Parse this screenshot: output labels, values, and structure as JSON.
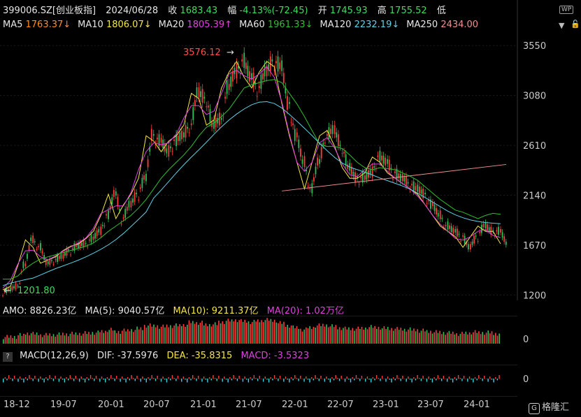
{
  "header": {
    "code": "399006.SZ[创业板指]",
    "date": "2024/06/28",
    "close_label": "收",
    "close": "1683.43",
    "amp_label": "幅",
    "change": "-4.13%(-72.45)",
    "open_label": "开",
    "open": "1745.93",
    "high_label": "高",
    "high": "1755.52",
    "low_label": "低"
  },
  "ma_line": [
    {
      "label": "MA5",
      "value": "1763.37↓",
      "color": "#ff8c1a"
    },
    {
      "label": "MA10",
      "value": "1806.07↓",
      "color": "#f5e642"
    },
    {
      "label": "MA20",
      "value": "1805.39↑",
      "color": "#e040e0"
    },
    {
      "label": "MA60",
      "value": "1961.33↓",
      "color": "#2fbf2f"
    },
    {
      "label": "MA120",
      "value": "2232.19↓",
      "color": "#5fd0e6"
    },
    {
      "label": "MA250",
      "value": "2434.00",
      "color": "#f08f8f"
    }
  ],
  "annotations": {
    "peak": "3576.12",
    "trough": "1201.80"
  },
  "price_axis": [
    "3550",
    "3080",
    "2610",
    "2140",
    "1670",
    "1200"
  ],
  "amo": {
    "label": "AMO: 8826.23亿",
    "ma5": "MA(5): 9040.57亿",
    "ma10": "MA(10): 9211.37亿",
    "ma20": "MA(20): 1.02万亿",
    "axis": "0"
  },
  "macd": {
    "q": "?",
    "label": "MACD(12,26,9)",
    "dif": "DIF: -37.5976",
    "dea": "DEA: -35.8315",
    "macd": "MACD: -3.5323",
    "axis": "0"
  },
  "x_ticks": [
    "18-12",
    "19-07",
    "20-01",
    "20-07",
    "21-01",
    "21-07",
    "22-01",
    "22-07",
    "23-01",
    "23-07",
    "24-01"
  ],
  "brand": "格隆汇",
  "chart_data": {
    "type": "line",
    "x": [
      "2018-12",
      "2019-01",
      "2019-02",
      "2019-03",
      "2019-04",
      "2019-05",
      "2019-06",
      "2019-07",
      "2019-08",
      "2019-09",
      "2019-10",
      "2019-11",
      "2019-12",
      "2020-01",
      "2020-02",
      "2020-03",
      "2020-04",
      "2020-05",
      "2020-06",
      "2020-07",
      "2020-08",
      "2020-09",
      "2020-10",
      "2020-11",
      "2020-12",
      "2021-01",
      "2021-02",
      "2021-03",
      "2021-04",
      "2021-05",
      "2021-06",
      "2021-07",
      "2021-08",
      "2021-09",
      "2021-10",
      "2021-11",
      "2021-12",
      "2022-01",
      "2022-02",
      "2022-03",
      "2022-04",
      "2022-05",
      "2022-06",
      "2022-07",
      "2022-08",
      "2022-09",
      "2022-10",
      "2022-11",
      "2022-12",
      "2023-01",
      "2023-02",
      "2023-03",
      "2023-04",
      "2023-05",
      "2023-06",
      "2023-07",
      "2023-08",
      "2023-09",
      "2023-10",
      "2023-11",
      "2023-12",
      "2024-01",
      "2024-02",
      "2024-03",
      "2024-04",
      "2024-05",
      "2024-06"
    ],
    "series": [
      {
        "name": "收",
        "values": [
          1250,
          1280,
          1480,
          1720,
          1650,
          1500,
          1530,
          1560,
          1620,
          1660,
          1680,
          1730,
          1800,
          1950,
          2150,
          1920,
          2050,
          2150,
          2300,
          2700,
          2650,
          2550,
          2650,
          2700,
          2800,
          3100,
          3050,
          2800,
          2850,
          3150,
          3300,
          3400,
          3250,
          3150,
          3300,
          3400,
          3350,
          3000,
          2700,
          2450,
          2200,
          2450,
          2700,
          2750,
          2600,
          2400,
          2300,
          2300,
          2350,
          2500,
          2450,
          2350,
          2300,
          2250,
          2200,
          2150,
          2050,
          1950,
          1850,
          1800,
          1750,
          1650,
          1750,
          1850,
          1800,
          1800,
          1683
        ]
      },
      {
        "name": "MA60",
        "values": [
          1350,
          1350,
          1380,
          1450,
          1500,
          1540,
          1560,
          1580,
          1600,
          1620,
          1640,
          1660,
          1690,
          1740,
          1800,
          1850,
          1900,
          1950,
          2020,
          2100,
          2200,
          2300,
          2380,
          2450,
          2520,
          2600,
          2700,
          2780,
          2820,
          2880,
          2950,
          3050,
          3150,
          3180,
          3200,
          3220,
          3230,
          3200,
          3100,
          3000,
          2880,
          2750,
          2620,
          2600,
          2600,
          2580,
          2520,
          2450,
          2400,
          2380,
          2400,
          2390,
          2380,
          2350,
          2320,
          2280,
          2220,
          2160,
          2100,
          2050,
          2000,
          1980,
          1950,
          1920,
          1950,
          1970,
          1961
        ]
      }
    ],
    "ylim": [
      1150,
      3650
    ],
    "grid": true
  }
}
